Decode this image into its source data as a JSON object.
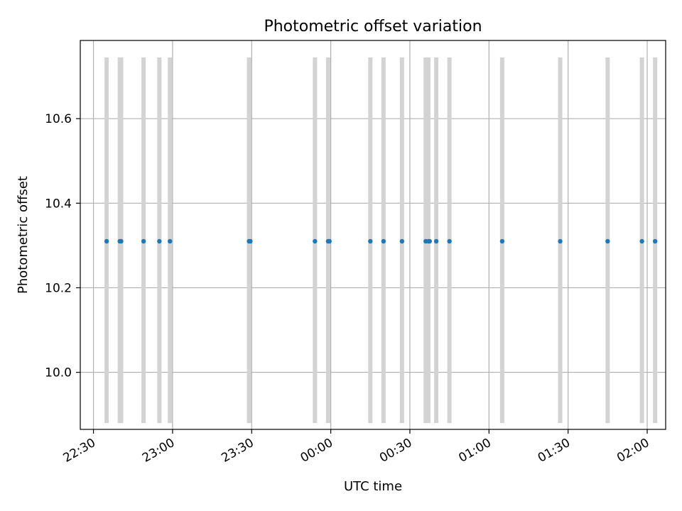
{
  "chart_data": {
    "type": "scatter",
    "title": "Photometric offset variation",
    "xlabel": "UTC time",
    "ylabel": "Photometric offset",
    "x_axis_kind": "time",
    "xlim": [
      "22:25",
      "02:07"
    ],
    "ylim": [
      9.865,
      10.785
    ],
    "x_ticks": [
      "22:30",
      "23:00",
      "23:30",
      "00:00",
      "00:30",
      "01:00",
      "01:30",
      "02:00"
    ],
    "y_ticks": [
      10.0,
      10.2,
      10.4,
      10.6
    ],
    "y_tick_labels": [
      "10.0",
      "10.2",
      "10.4",
      "10.6"
    ],
    "grid": true,
    "points": {
      "x": [
        "22:35",
        "22:40",
        "22:40:30",
        "22:49",
        "22:55",
        "22:59",
        "23:29",
        "23:29:30",
        "23:54",
        "23:59",
        "23:59:30",
        "00:15",
        "00:20",
        "00:27",
        "00:36",
        "00:37",
        "00:37:30",
        "00:40",
        "00:45",
        "01:05",
        "01:27",
        "01:45",
        "01:58",
        "02:03"
      ],
      "y": [
        10.31,
        10.31,
        10.31,
        10.31,
        10.31,
        10.31,
        10.31,
        10.31,
        10.31,
        10.31,
        10.31,
        10.31,
        10.31,
        10.31,
        10.31,
        10.31,
        10.31,
        10.31,
        10.31,
        10.31,
        10.31,
        10.31,
        10.31,
        10.31
      ],
      "color": "#1f77b4"
    },
    "vertical_markers": {
      "x": [
        "22:35",
        "22:40",
        "22:40:30",
        "22:49",
        "22:55",
        "22:59",
        "23:29",
        "23:54",
        "23:59",
        "00:15",
        "00:20",
        "00:27",
        "00:36",
        "00:37",
        "00:40",
        "00:45",
        "01:05",
        "01:27",
        "01:45",
        "01:58",
        "02:03"
      ],
      "y_range": [
        9.88,
        10.745
      ],
      "color": "#d3d3d3"
    }
  }
}
